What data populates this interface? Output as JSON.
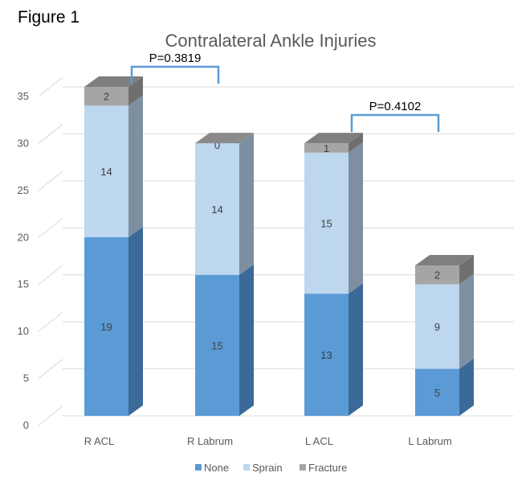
{
  "figure_label": "Figure 1",
  "chart_data": {
    "type": "bar",
    "stacked": true,
    "three_d": true,
    "title": "Contralateral Ankle Injuries",
    "xlabel": "",
    "ylabel": "",
    "categories": [
      "R ACL",
      "R Labrum",
      "L ACL",
      "L Labrum"
    ],
    "ylim": [
      0,
      35
    ],
    "yticks": [
      0,
      5,
      10,
      15,
      20,
      25,
      30,
      35
    ],
    "grid": true,
    "legend_position": "bottom",
    "series": [
      {
        "name": "None",
        "values": [
          19,
          15,
          13,
          5
        ],
        "color": "#5b9bd5",
        "side_color": "#3b6a98"
      },
      {
        "name": "Sprain",
        "values": [
          14,
          14,
          15,
          9
        ],
        "color": "#bdd7ee",
        "side_color": "#7d8fa0"
      },
      {
        "name": "Fracture",
        "values": [
          2,
          0,
          1,
          2
        ],
        "color": "#a5a5a5",
        "side_color": "#6f6f6f"
      }
    ],
    "annotations": [
      {
        "text": "P=0.3819",
        "from": "R ACL",
        "to": "R Labrum"
      },
      {
        "text": "P=0.4102",
        "from": "L ACL",
        "to": "L Labrum"
      }
    ],
    "bracket_color": "#5b9bd5"
  }
}
